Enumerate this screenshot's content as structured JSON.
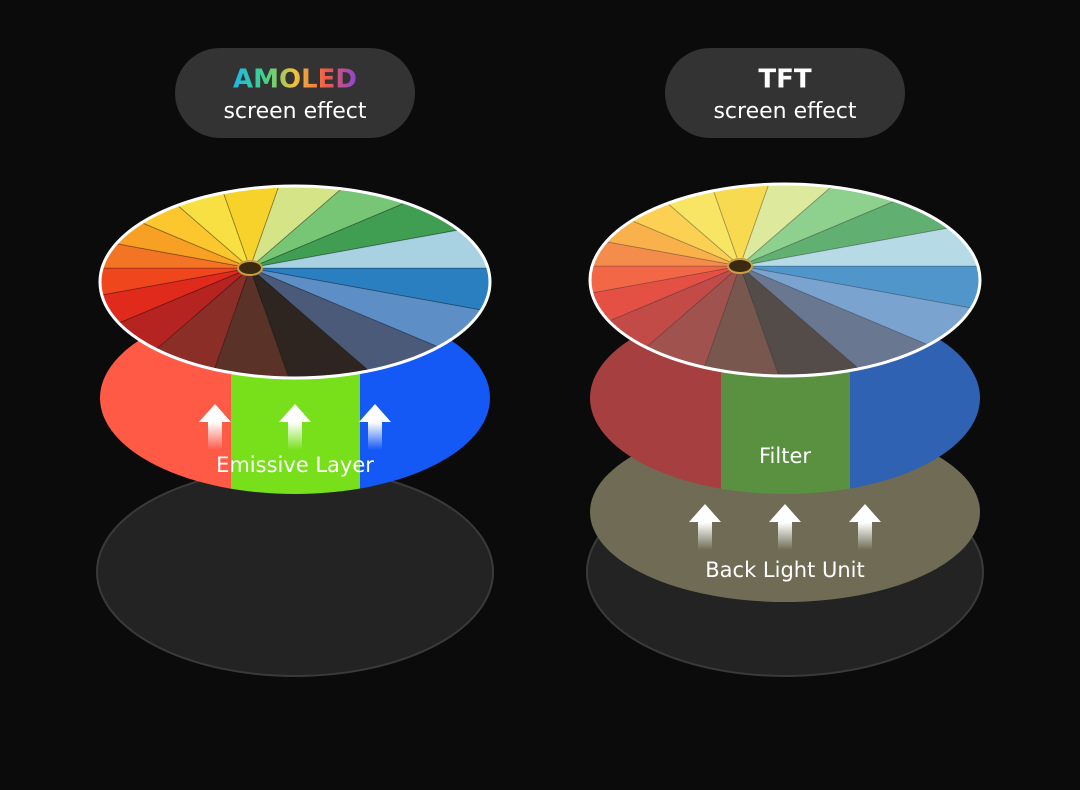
{
  "left": {
    "title": "AMOLED",
    "subtitle": "screen effect",
    "layer_label": "Emissive Layer"
  },
  "right": {
    "title": "TFT",
    "subtitle": "screen effect",
    "filter_label": "Filter",
    "backlight_label": "Back Light Unit"
  }
}
